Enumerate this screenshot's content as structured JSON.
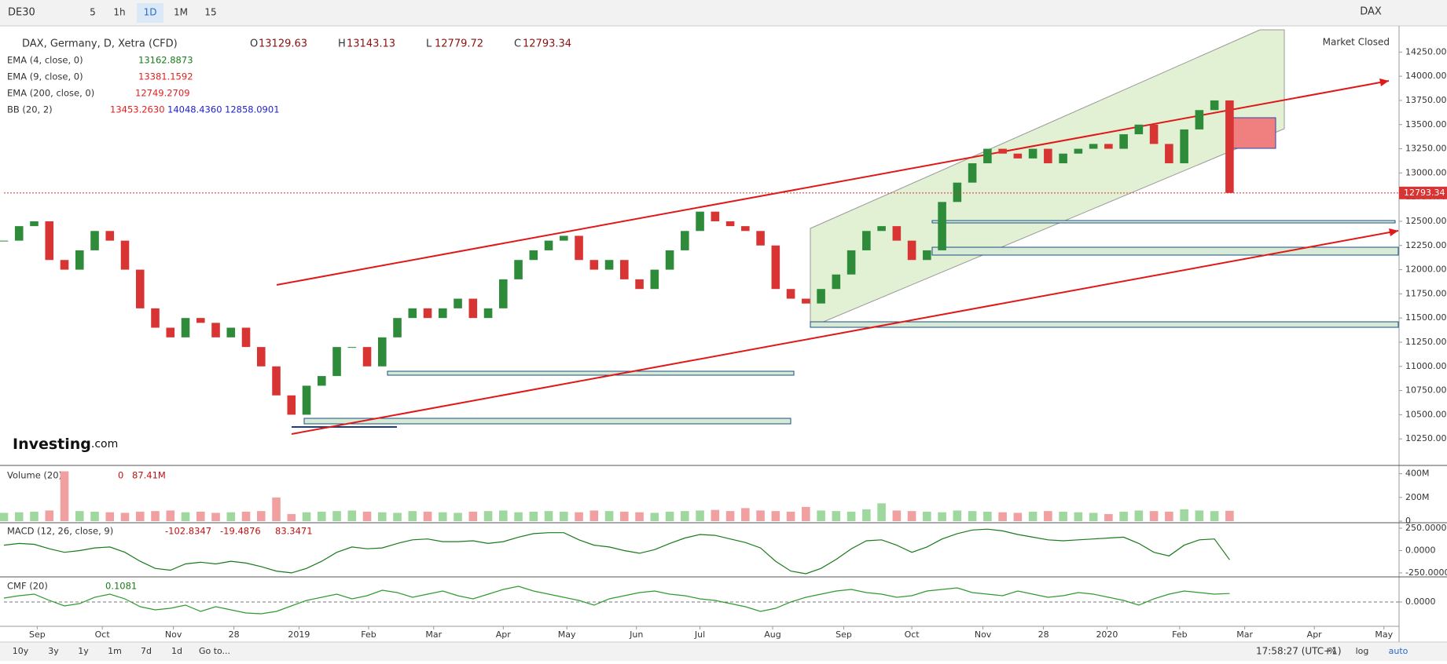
{
  "toolbar": {
    "symbol": "DE30",
    "intervals": [
      "5",
      "1h",
      "1D",
      "1M",
      "15"
    ],
    "symbol_right": "DAX"
  },
  "market_status": "Market Closed",
  "logo": {
    "bold": "Investing",
    "rest": ".com"
  },
  "footer": {
    "ranges": [
      "10y",
      "3y",
      "1y",
      "1m",
      "7d",
      "1d",
      "Go to..."
    ],
    "clock": "17:58:27 (UTC+1)",
    "options": [
      "%",
      "log",
      "auto"
    ]
  },
  "chart_data": {
    "type": "candlestick",
    "title": "DAX, Germany, D, Xetra (CFD)",
    "ohlc": {
      "labels": [
        "O",
        "H",
        "L",
        "C"
      ],
      "values": [
        13129.63,
        13143.13,
        12779.72,
        12793.34
      ]
    },
    "indicators": [
      {
        "name": "EMA (4, close, 0)",
        "values": [
          13162.8873
        ],
        "color": "#1a7a1a"
      },
      {
        "name": "EMA (9, close, 0)",
        "values": [
          13381.1592
        ],
        "color": "#e02020"
      },
      {
        "name": "EMA (200, close, 0)",
        "values": [
          12749.2709
        ],
        "color": "#e02020"
      },
      {
        "name": "BB (20, 2)",
        "values": [
          13453.263,
          14048.436,
          12858.0901
        ],
        "value_labels": [
          "13453.2630",
          "14048.4360",
          "12858.0901"
        ],
        "colors": [
          "#e02020",
          "#2222cc",
          "#2222cc"
        ]
      }
    ],
    "last_price": 12793.34,
    "up_color": "#2e8b3a",
    "down_color": "#d83434",
    "ylim": [
      10000,
      14480
    ],
    "yticks": [
      {
        "value": 10250,
        "label": "10250.00"
      },
      {
        "value": 10500,
        "label": "10500.00"
      },
      {
        "value": 10750,
        "label": "10750.00"
      },
      {
        "value": 11000,
        "label": "11000.00"
      },
      {
        "value": 11250,
        "label": "11250.00"
      },
      {
        "value": 11500,
        "label": "11500.00"
      },
      {
        "value": 11750,
        "label": "11750.00"
      },
      {
        "value": 12000,
        "label": "12000.00"
      },
      {
        "value": 12250,
        "label": "12250.00"
      },
      {
        "value": 12500,
        "label": "12500.00"
      },
      {
        "value": 12750,
        "label": "12750.00"
      },
      {
        "value": 13000,
        "label": "13000.00"
      },
      {
        "value": 13250,
        "label": "13250.00"
      },
      {
        "value": 13500,
        "label": "13500.00"
      },
      {
        "value": 13750,
        "label": "13750.00"
      },
      {
        "value": 14000,
        "label": "14000.00"
      },
      {
        "value": 14250,
        "label": "14250.00"
      }
    ],
    "xlim": [
      0,
      92.2
    ],
    "xticks": [
      {
        "value": 2.2,
        "label": "Sep"
      },
      {
        "value": 6.5,
        "label": "Oct"
      },
      {
        "value": 11.2,
        "label": "Nov"
      },
      {
        "value": 15.2,
        "label": "28"
      },
      {
        "value": 19.5,
        "label": "2019"
      },
      {
        "value": 24.1,
        "label": "Feb"
      },
      {
        "value": 28.4,
        "label": "Mar"
      },
      {
        "value": 33,
        "label": "Apr"
      },
      {
        "value": 37.2,
        "label": "May"
      },
      {
        "value": 41.8,
        "label": "Jun"
      },
      {
        "value": 46,
        "label": "Jul"
      },
      {
        "value": 50.8,
        "label": "Aug"
      },
      {
        "value": 55.5,
        "label": "Sep"
      },
      {
        "value": 60,
        "label": "Oct"
      },
      {
        "value": 64.7,
        "label": "Nov"
      },
      {
        "value": 68.7,
        "label": "28"
      },
      {
        "value": 72.9,
        "label": "2020"
      },
      {
        "value": 77.7,
        "label": "Feb"
      },
      {
        "value": 82,
        "label": "Mar"
      },
      {
        "value": 86.6,
        "label": "Apr"
      },
      {
        "value": 91.2,
        "label": "May"
      }
    ],
    "x": [
      0,
      1,
      2,
      3,
      4,
      5,
      6,
      7,
      8,
      9,
      10,
      11,
      12,
      13,
      14,
      15,
      16,
      17,
      18,
      19,
      20,
      21,
      22,
      23,
      24,
      25,
      26,
      27,
      28,
      29,
      30,
      31,
      32,
      33,
      34,
      35,
      36,
      37,
      38,
      39,
      40,
      41,
      42,
      43,
      44,
      45,
      46,
      47,
      48,
      49,
      50,
      51,
      52,
      53,
      54,
      55,
      56,
      57,
      58,
      59,
      60,
      61,
      62,
      63,
      64,
      65,
      66,
      67,
      68,
      69,
      70,
      71,
      72,
      73,
      74,
      75,
      76,
      77,
      78,
      79,
      80,
      81
    ],
    "close": [
      12300,
      12450,
      12500,
      12100,
      12000,
      12200,
      12400,
      12300,
      12000,
      11600,
      11400,
      11300,
      11500,
      11450,
      11300,
      11400,
      11200,
      11000,
      10700,
      10500,
      10800,
      10900,
      11200,
      11200,
      11000,
      11300,
      11500,
      11600,
      11500,
      11600,
      11700,
      11500,
      11600,
      11900,
      12100,
      12200,
      12300,
      12350,
      12100,
      12000,
      12100,
      11900,
      11800,
      12000,
      12200,
      12400,
      12600,
      12500,
      12450,
      12400,
      12250,
      11800,
      11700,
      11650,
      11800,
      11950,
      12200,
      12400,
      12450,
      12300,
      12100,
      12200,
      12700,
      12900,
      13100,
      13250,
      13200,
      13150,
      13250,
      13100,
      13200,
      13250,
      13300,
      13250,
      13400,
      13500,
      13300,
      13100,
      13450,
      13650,
      13750,
      12793.34
    ],
    "panels": [
      {
        "type": "bar",
        "title": "Volume (20)",
        "legend_values": [
          0,
          87.41
        ],
        "legend_value_labels": [
          "0",
          "87.41M"
        ],
        "ylim": [
          0,
          450
        ],
        "yticks": [
          {
            "value": 0,
            "label": "0"
          },
          {
            "value": 200,
            "label": "200M"
          },
          {
            "value": 400,
            "label": "400M"
          }
        ],
        "values": [
          70,
          75,
          80,
          90,
          420,
          85,
          80,
          75,
          70,
          80,
          85,
          90,
          75,
          80,
          70,
          75,
          80,
          85,
          200,
          60,
          75,
          80,
          85,
          90,
          80,
          75,
          70,
          85,
          80,
          75,
          70,
          80,
          85,
          90,
          75,
          80,
          85,
          80,
          75,
          90,
          85,
          80,
          75,
          70,
          80,
          85,
          90,
          95,
          85,
          110,
          90,
          85,
          80,
          120,
          90,
          85,
          80,
          100,
          150,
          90,
          85,
          80,
          75,
          90,
          85,
          80,
          75,
          70,
          80,
          85,
          80,
          75,
          70,
          60,
          80,
          90,
          85,
          80,
          100,
          90,
          85,
          87.41
        ]
      },
      {
        "type": "line",
        "title": "MACD (12, 26, close, 9)",
        "legend_values": [
          -102.8347,
          -19.4876,
          83.3471
        ],
        "color": "#1a7a1a",
        "ylim": [
          -286,
          303
        ],
        "yticks": [
          {
            "value": -250,
            "label": "-250.0000"
          },
          {
            "value": 0,
            "label": "0.0000"
          },
          {
            "value": 250,
            "label": "250.0000"
          }
        ],
        "values": [
          60,
          80,
          70,
          20,
          -20,
          0,
          30,
          40,
          -20,
          -120,
          -200,
          -220,
          -150,
          -130,
          -150,
          -120,
          -140,
          -180,
          -230,
          -250,
          -200,
          -120,
          -20,
          40,
          20,
          30,
          80,
          120,
          130,
          100,
          100,
          110,
          80,
          100,
          150,
          190,
          200,
          200,
          120,
          60,
          40,
          0,
          -30,
          10,
          80,
          140,
          180,
          170,
          130,
          90,
          30,
          -120,
          -230,
          -260,
          -200,
          -100,
          20,
          110,
          120,
          60,
          -20,
          40,
          130,
          190,
          230,
          240,
          220,
          180,
          150,
          120,
          110,
          120,
          130,
          140,
          150,
          80,
          -20,
          -60,
          60,
          120,
          130,
          -102.8347
        ]
      },
      {
        "type": "line",
        "title": "CMF (20)",
        "legend_values": [
          0.1081
        ],
        "color": "#2e9b2e",
        "ylim": [
          -0.3,
          0.3
        ],
        "yticks": [
          {
            "value": 0,
            "label": "0.0000"
          }
        ],
        "values": [
          0.05,
          0.08,
          0.1,
          0.02,
          -0.05,
          -0.02,
          0.06,
          0.1,
          0.04,
          -0.06,
          -0.1,
          -0.08,
          -0.04,
          -0.12,
          -0.06,
          -0.1,
          -0.14,
          -0.15,
          -0.12,
          -0.05,
          0.02,
          0.06,
          0.1,
          0.04,
          0.08,
          0.15,
          0.12,
          0.06,
          0.1,
          0.14,
          0.08,
          0.04,
          0.1,
          0.16,
          0.2,
          0.14,
          0.1,
          0.06,
          0.02,
          -0.04,
          0.04,
          0.08,
          0.12,
          0.14,
          0.1,
          0.08,
          0.04,
          0.02,
          -0.02,
          -0.06,
          -0.12,
          -0.08,
          0.0,
          0.06,
          0.1,
          0.14,
          0.16,
          0.12,
          0.1,
          0.06,
          0.08,
          0.14,
          0.16,
          0.18,
          0.12,
          0.1,
          0.08,
          0.14,
          0.1,
          0.06,
          0.08,
          0.12,
          0.1,
          0.06,
          0.02,
          -0.04,
          0.04,
          0.1,
          0.14,
          0.12,
          0.1,
          0.1081
        ]
      }
    ]
  }
}
